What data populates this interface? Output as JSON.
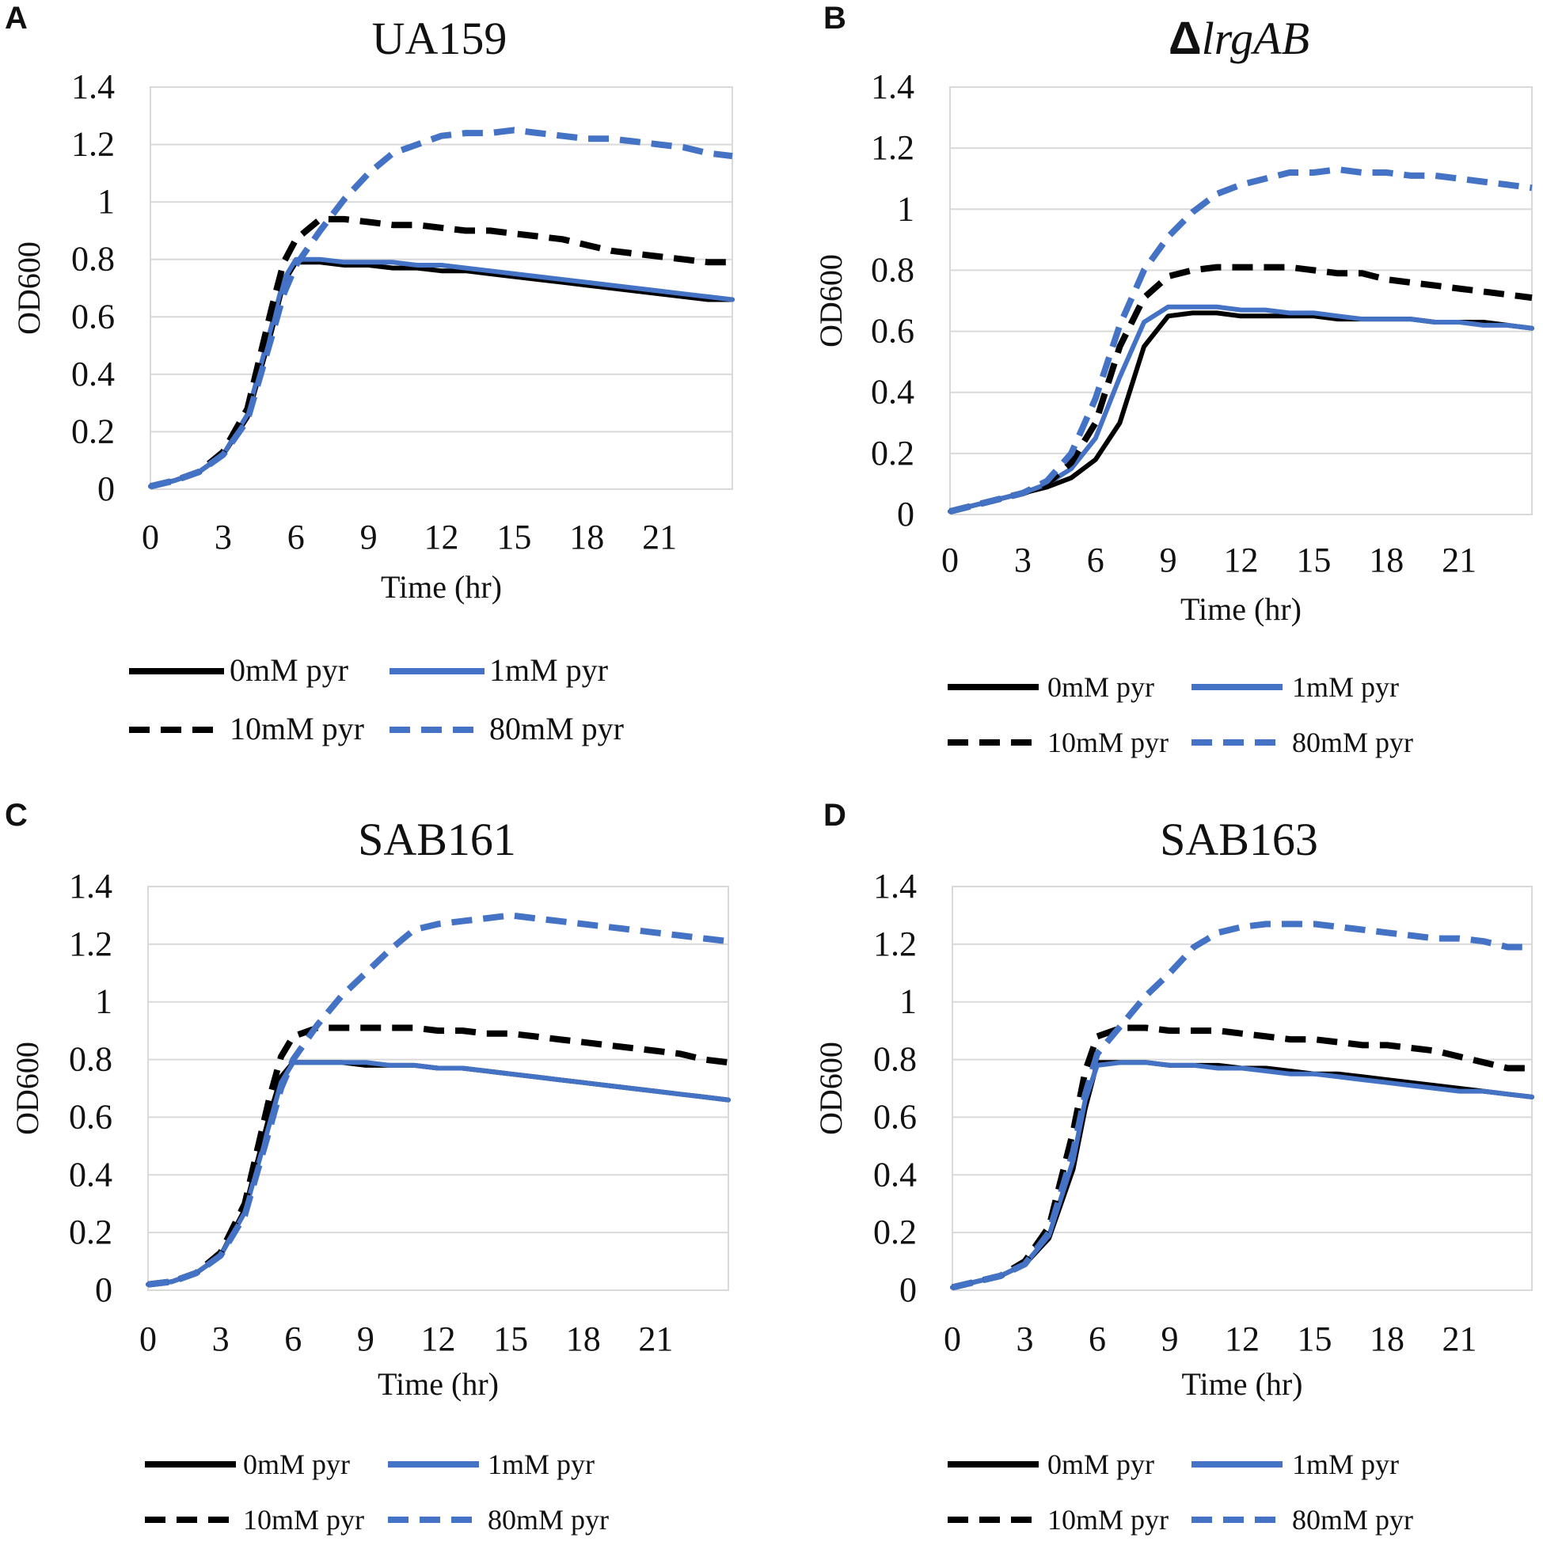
{
  "figure": {
    "series_styles": [
      {
        "name": "0mM pyr",
        "color": "#000000",
        "dashed": false
      },
      {
        "name": "1mM pyr",
        "color": "#4472C4",
        "dashed": false
      },
      {
        "name": "10mM pyr",
        "color": "#000000",
        "dashed": true
      },
      {
        "name": "80mM pyr",
        "color": "#4472C4",
        "dashed": true
      }
    ]
  },
  "chart_data": [
    {
      "panel": "A",
      "type": "line",
      "title": "UA159",
      "title_style": "plain",
      "xlabel": "Time (hr)",
      "ylabel": "OD600",
      "xlim": [
        0,
        24
      ],
      "ylim": [
        0,
        1.4
      ],
      "x_ticks": [
        "0",
        "3",
        "6",
        "9",
        "12",
        "15",
        "18",
        "21"
      ],
      "y_ticks": [
        "0",
        "0.2",
        "0.4",
        "0.6",
        "0.8",
        "1",
        "1.2",
        "1.4"
      ],
      "grid": true,
      "legend": {
        "placement": "bottom",
        "entries": [
          "0mM pyr",
          "1mM pyr",
          "10mM pyr",
          "80mM pyr"
        ]
      },
      "x": [
        0,
        1,
        2,
        3,
        4,
        5,
        5.5,
        6,
        7,
        8,
        9,
        10,
        11,
        12,
        13,
        14,
        15,
        16,
        17,
        18,
        19,
        20,
        21,
        22,
        23,
        24
      ],
      "series": [
        {
          "name": "0mM pyr",
          "values": [
            0.01,
            0.03,
            0.06,
            0.12,
            0.25,
            0.55,
            0.72,
            0.79,
            0.79,
            0.78,
            0.78,
            0.77,
            0.77,
            0.76,
            0.76,
            0.75,
            0.74,
            0.73,
            0.72,
            0.71,
            0.7,
            0.69,
            0.68,
            0.67,
            0.66,
            0.66
          ]
        },
        {
          "name": "1mM pyr",
          "values": [
            0.01,
            0.03,
            0.06,
            0.12,
            0.26,
            0.57,
            0.73,
            0.8,
            0.8,
            0.79,
            0.79,
            0.79,
            0.78,
            0.78,
            0.77,
            0.76,
            0.75,
            0.74,
            0.73,
            0.72,
            0.71,
            0.7,
            0.69,
            0.68,
            0.67,
            0.66
          ]
        },
        {
          "name": "10mM pyr",
          "values": [
            0.01,
            0.03,
            0.06,
            0.13,
            0.28,
            0.63,
            0.79,
            0.87,
            0.94,
            0.94,
            0.93,
            0.92,
            0.92,
            0.91,
            0.9,
            0.9,
            0.89,
            0.88,
            0.87,
            0.85,
            0.83,
            0.82,
            0.81,
            0.8,
            0.79,
            0.79
          ]
        },
        {
          "name": "80mM pyr",
          "values": [
            0.01,
            0.03,
            0.06,
            0.12,
            0.24,
            0.53,
            0.68,
            0.78,
            0.9,
            1.01,
            1.1,
            1.17,
            1.2,
            1.23,
            1.24,
            1.24,
            1.25,
            1.24,
            1.23,
            1.22,
            1.22,
            1.21,
            1.2,
            1.19,
            1.17,
            1.16
          ]
        }
      ]
    },
    {
      "panel": "B",
      "type": "line",
      "title": "ΔlrgAB",
      "title_style": "delta-italic",
      "xlabel": "Time (hr)",
      "ylabel": "OD600",
      "xlim": [
        0,
        24
      ],
      "ylim": [
        0,
        1.4
      ],
      "x_ticks": [
        "0",
        "3",
        "6",
        "9",
        "12",
        "15",
        "18",
        "21"
      ],
      "y_ticks": [
        "0",
        "0.2",
        "0.4",
        "0.6",
        "0.8",
        "1",
        "1.2",
        "1.4"
      ],
      "grid": true,
      "legend": {
        "placement": "bottom",
        "entries": [
          "0mM pyr",
          "1mM pyr",
          "10mM pyr",
          "80mM pyr"
        ]
      },
      "x": [
        0,
        1,
        2,
        3,
        4,
        5,
        6,
        7,
        8,
        9,
        10,
        11,
        12,
        13,
        14,
        15,
        16,
        17,
        18,
        19,
        20,
        21,
        22,
        23,
        24
      ],
      "series": [
        {
          "name": "0mM pyr",
          "values": [
            0.01,
            0.03,
            0.05,
            0.07,
            0.09,
            0.12,
            0.18,
            0.3,
            0.55,
            0.65,
            0.66,
            0.66,
            0.65,
            0.65,
            0.65,
            0.65,
            0.64,
            0.64,
            0.64,
            0.64,
            0.63,
            0.63,
            0.63,
            0.62,
            0.61
          ]
        },
        {
          "name": "1mM pyr",
          "values": [
            0.01,
            0.03,
            0.05,
            0.07,
            0.1,
            0.15,
            0.25,
            0.45,
            0.63,
            0.68,
            0.68,
            0.68,
            0.67,
            0.67,
            0.66,
            0.66,
            0.65,
            0.64,
            0.64,
            0.64,
            0.63,
            0.63,
            0.62,
            0.62,
            0.61
          ]
        },
        {
          "name": "10mM pyr",
          "values": [
            0.01,
            0.03,
            0.05,
            0.07,
            0.1,
            0.17,
            0.3,
            0.55,
            0.71,
            0.78,
            0.8,
            0.81,
            0.81,
            0.81,
            0.81,
            0.8,
            0.79,
            0.79,
            0.77,
            0.76,
            0.75,
            0.74,
            0.73,
            0.72,
            0.71
          ]
        },
        {
          "name": "80mM pyr",
          "values": [
            0.01,
            0.03,
            0.05,
            0.07,
            0.11,
            0.2,
            0.38,
            0.62,
            0.8,
            0.91,
            0.99,
            1.05,
            1.08,
            1.1,
            1.12,
            1.12,
            1.13,
            1.12,
            1.12,
            1.11,
            1.11,
            1.1,
            1.09,
            1.08,
            1.07
          ]
        }
      ]
    },
    {
      "panel": "C",
      "type": "line",
      "title": "SAB161",
      "title_style": "plain",
      "xlabel": "Time (hr)",
      "ylabel": "OD600",
      "xlim": [
        0,
        24
      ],
      "ylim": [
        0,
        1.4
      ],
      "x_ticks": [
        "0",
        "3",
        "6",
        "9",
        "12",
        "15",
        "18",
        "21"
      ],
      "y_ticks": [
        "0",
        "0.2",
        "0.4",
        "0.6",
        "0.8",
        "1",
        "1.2",
        "1.4"
      ],
      "grid": true,
      "legend": {
        "placement": "bottom",
        "entries": [
          "0mM pyr",
          "1mM pyr",
          "10mM pyr",
          "80mM pyr"
        ]
      },
      "x": [
        0,
        1,
        2,
        3,
        4,
        5,
        5.5,
        6,
        7,
        8,
        9,
        10,
        11,
        12,
        13,
        14,
        15,
        16,
        17,
        18,
        19,
        20,
        21,
        22,
        23,
        24
      ],
      "series": [
        {
          "name": "0mM pyr",
          "values": [
            0.02,
            0.03,
            0.06,
            0.12,
            0.28,
            0.6,
            0.74,
            0.79,
            0.79,
            0.79,
            0.78,
            0.78,
            0.78,
            0.77,
            0.77,
            0.76,
            0.75,
            0.74,
            0.73,
            0.72,
            0.71,
            0.7,
            0.69,
            0.68,
            0.67,
            0.66
          ]
        },
        {
          "name": "1mM pyr",
          "values": [
            0.02,
            0.03,
            0.06,
            0.12,
            0.27,
            0.57,
            0.72,
            0.79,
            0.79,
            0.79,
            0.79,
            0.78,
            0.78,
            0.77,
            0.77,
            0.76,
            0.75,
            0.74,
            0.73,
            0.72,
            0.71,
            0.7,
            0.69,
            0.68,
            0.67,
            0.66
          ]
        },
        {
          "name": "10mM pyr",
          "values": [
            0.02,
            0.03,
            0.06,
            0.13,
            0.3,
            0.66,
            0.81,
            0.88,
            0.91,
            0.91,
            0.91,
            0.91,
            0.91,
            0.9,
            0.9,
            0.89,
            0.89,
            0.88,
            0.87,
            0.86,
            0.85,
            0.84,
            0.83,
            0.82,
            0.8,
            0.79
          ]
        },
        {
          "name": "80mM pyr",
          "values": [
            0.02,
            0.03,
            0.06,
            0.12,
            0.26,
            0.55,
            0.7,
            0.8,
            0.92,
            1.02,
            1.1,
            1.18,
            1.25,
            1.27,
            1.28,
            1.29,
            1.3,
            1.29,
            1.28,
            1.27,
            1.26,
            1.25,
            1.24,
            1.23,
            1.22,
            1.21
          ]
        }
      ]
    },
    {
      "panel": "D",
      "type": "line",
      "title": "SAB163",
      "title_style": "plain",
      "xlabel": "Time (hr)",
      "ylabel": "OD600",
      "xlim": [
        0,
        24
      ],
      "ylim": [
        0,
        1.4
      ],
      "x_ticks": [
        "0",
        "3",
        "6",
        "9",
        "12",
        "15",
        "18",
        "21"
      ],
      "y_ticks": [
        "0",
        "0.2",
        "0.4",
        "0.6",
        "0.8",
        "1",
        "1.2",
        "1.4"
      ],
      "grid": true,
      "legend": {
        "placement": "bottom",
        "entries": [
          "0mM pyr",
          "1mM pyr",
          "10mM pyr",
          "80mM pyr"
        ]
      },
      "x": [
        0,
        1,
        2,
        3,
        4,
        5,
        5.5,
        6,
        7,
        8,
        9,
        10,
        11,
        12,
        13,
        14,
        15,
        16,
        17,
        18,
        19,
        20,
        21,
        22,
        23,
        24
      ],
      "series": [
        {
          "name": "0mM pyr",
          "values": [
            0.01,
            0.03,
            0.05,
            0.09,
            0.18,
            0.42,
            0.63,
            0.79,
            0.79,
            0.79,
            0.78,
            0.78,
            0.78,
            0.77,
            0.77,
            0.76,
            0.75,
            0.75,
            0.74,
            0.73,
            0.72,
            0.71,
            0.7,
            0.69,
            0.68,
            0.67
          ]
        },
        {
          "name": "1mM pyr",
          "values": [
            0.01,
            0.03,
            0.05,
            0.09,
            0.19,
            0.45,
            0.66,
            0.78,
            0.79,
            0.79,
            0.78,
            0.78,
            0.77,
            0.77,
            0.76,
            0.75,
            0.75,
            0.74,
            0.73,
            0.72,
            0.71,
            0.7,
            0.69,
            0.69,
            0.68,
            0.67
          ]
        },
        {
          "name": "10mM pyr",
          "values": [
            0.01,
            0.03,
            0.05,
            0.1,
            0.22,
            0.55,
            0.76,
            0.88,
            0.91,
            0.91,
            0.9,
            0.9,
            0.9,
            0.89,
            0.88,
            0.87,
            0.87,
            0.86,
            0.85,
            0.85,
            0.84,
            0.83,
            0.81,
            0.79,
            0.77,
            0.77
          ]
        },
        {
          "name": "80mM pyr",
          "values": [
            0.01,
            0.03,
            0.05,
            0.09,
            0.2,
            0.48,
            0.68,
            0.82,
            0.92,
            1.02,
            1.1,
            1.19,
            1.24,
            1.26,
            1.27,
            1.27,
            1.27,
            1.26,
            1.25,
            1.24,
            1.23,
            1.22,
            1.22,
            1.21,
            1.19,
            1.19
          ]
        }
      ]
    }
  ]
}
